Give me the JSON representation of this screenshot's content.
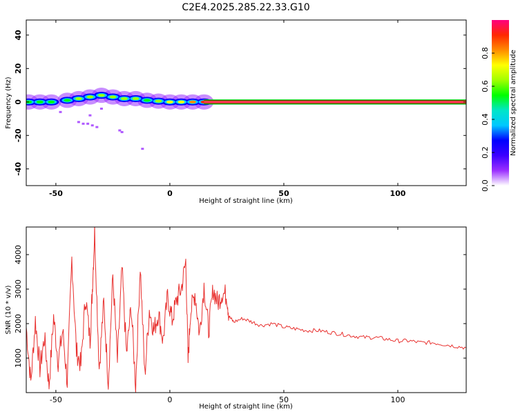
{
  "title": "C2E4.2025.285.22.33.G10",
  "chart_data": [
    {
      "type": "heatmap",
      "xlabel": "Height of straight line (km)",
      "ylabel": "Frequency (Hz)",
      "xlim": [
        -63,
        130
      ],
      "ylim": [
        -50,
        49
      ],
      "xticks": [
        "-50",
        "0",
        "50",
        "100"
      ],
      "yticks": [
        "40",
        "20",
        "0",
        "-20",
        "-40"
      ],
      "xtick_values": [
        -50,
        0,
        50,
        100
      ],
      "ytick_values": [
        40,
        20,
        0,
        -20,
        -40
      ],
      "colorbar": {
        "label": "Normalized spectral amplitude",
        "range": [
          0,
          1
        ],
        "ticks": [
          "0.0",
          "0.2",
          "0.4",
          "0.6",
          "0.8"
        ],
        "tick_values": [
          0,
          0.2,
          0.4,
          0.6,
          0.8
        ],
        "colormap": [
          "#ffffff",
          "#9b30ff",
          "#3c00ff",
          "#0000ff",
          "#00c8ff",
          "#00e6c8",
          "#00ff00",
          "#a0ff00",
          "#ffff00",
          "#ff8c00",
          "#ff2800",
          "#ff007f"
        ]
      },
      "ridge": [
        {
          "x": -62,
          "f": 0,
          "amp": 0.55
        },
        {
          "x": -57,
          "f": 0,
          "amp": 0.5
        },
        {
          "x": -52,
          "f": 0,
          "amp": 0.55
        },
        {
          "x": -45,
          "f": 1,
          "amp": 0.55
        },
        {
          "x": -40,
          "f": 2,
          "amp": 0.6
        },
        {
          "x": -35,
          "f": 3,
          "amp": 0.6
        },
        {
          "x": -30,
          "f": 4,
          "amp": 0.65
        },
        {
          "x": -25,
          "f": 3,
          "amp": 0.65
        },
        {
          "x": -20,
          "f": 2,
          "amp": 0.65
        },
        {
          "x": -15,
          "f": 2,
          "amp": 0.6
        },
        {
          "x": -10,
          "f": 1,
          "amp": 0.55
        },
        {
          "x": -5,
          "f": 0.5,
          "amp": 0.6
        },
        {
          "x": 0,
          "f": 0,
          "amp": 0.7
        },
        {
          "x": 5,
          "f": 0,
          "amp": 0.75
        },
        {
          "x": 10,
          "f": 0,
          "amp": 0.8
        },
        {
          "x": 15,
          "f": 0,
          "amp": 0.95
        }
      ],
      "band": {
        "x_start": 15,
        "x_end": 130,
        "f": 0,
        "amp": 1.0,
        "half_width_hz": 1.5
      },
      "scatter": [
        {
          "x": -40,
          "f": -12
        },
        {
          "x": -38,
          "f": -13
        },
        {
          "x": -36,
          "f": -13
        },
        {
          "x": -34,
          "f": -14
        },
        {
          "x": -32,
          "f": -15
        },
        {
          "x": -22,
          "f": -17
        },
        {
          "x": -21,
          "f": -18
        },
        {
          "x": -12,
          "f": -28
        },
        {
          "x": -35,
          "f": -8
        },
        {
          "x": -48,
          "f": -6
        },
        {
          "x": -30,
          "f": -4
        }
      ]
    },
    {
      "type": "line",
      "xlabel": "Height of straight line (km)",
      "ylabel": "SNR (10 * v/v)",
      "xlim": [
        -63,
        130
      ],
      "ylim": [
        0,
        4800
      ],
      "xticks": [
        "-50",
        "0",
        "50",
        "100"
      ],
      "yticks": [
        "1000",
        "2000",
        "3000",
        "4000"
      ],
      "xtick_values": [
        -50,
        0,
        50,
        100
      ],
      "ytick_values": [
        1000,
        2000,
        3000,
        4000
      ],
      "color": "#e8302e",
      "series": [
        {
          "x": [
            -63,
            -61,
            -59,
            -57,
            -55,
            -53,
            -51,
            -49,
            -47,
            -45,
            -43,
            -41,
            -39,
            -37,
            -35,
            -34,
            -33,
            -31,
            -29,
            -27,
            -25,
            -23,
            -21,
            -19,
            -17,
            -15,
            -13,
            -11,
            -9,
            -7,
            -5,
            -3,
            -1,
            1,
            3,
            5,
            7,
            8,
            9,
            11,
            13,
            15,
            17,
            19,
            21,
            23,
            25,
            26,
            28,
            32,
            36,
            40,
            45,
            50,
            55,
            60,
            65,
            70,
            75,
            80,
            85,
            90,
            95,
            100,
            105,
            110,
            115,
            120,
            125,
            130
          ],
          "y": [
            1900,
            300,
            2100,
            700,
            1600,
            200,
            2200,
            900,
            1800,
            300,
            3900,
            1200,
            800,
            2800,
            1500,
            3000,
            4700,
            700,
            2600,
            300,
            3400,
            900,
            3600,
            1100,
            2500,
            200,
            3700,
            500,
            2400,
            1800,
            2300,
            1500,
            2800,
            2100,
            2700,
            3000,
            3800,
            900,
            2300,
            2900,
            1700,
            3100,
            1800,
            3000,
            2600,
            2900,
            2800,
            2200,
            2050,
            2150,
            2050,
            1950,
            2000,
            1900,
            1850,
            1800,
            1800,
            1750,
            1700,
            1650,
            1600,
            1600,
            1550,
            1500,
            1500,
            1450,
            1450,
            1400,
            1350,
            1300
          ]
        }
      ]
    }
  ]
}
